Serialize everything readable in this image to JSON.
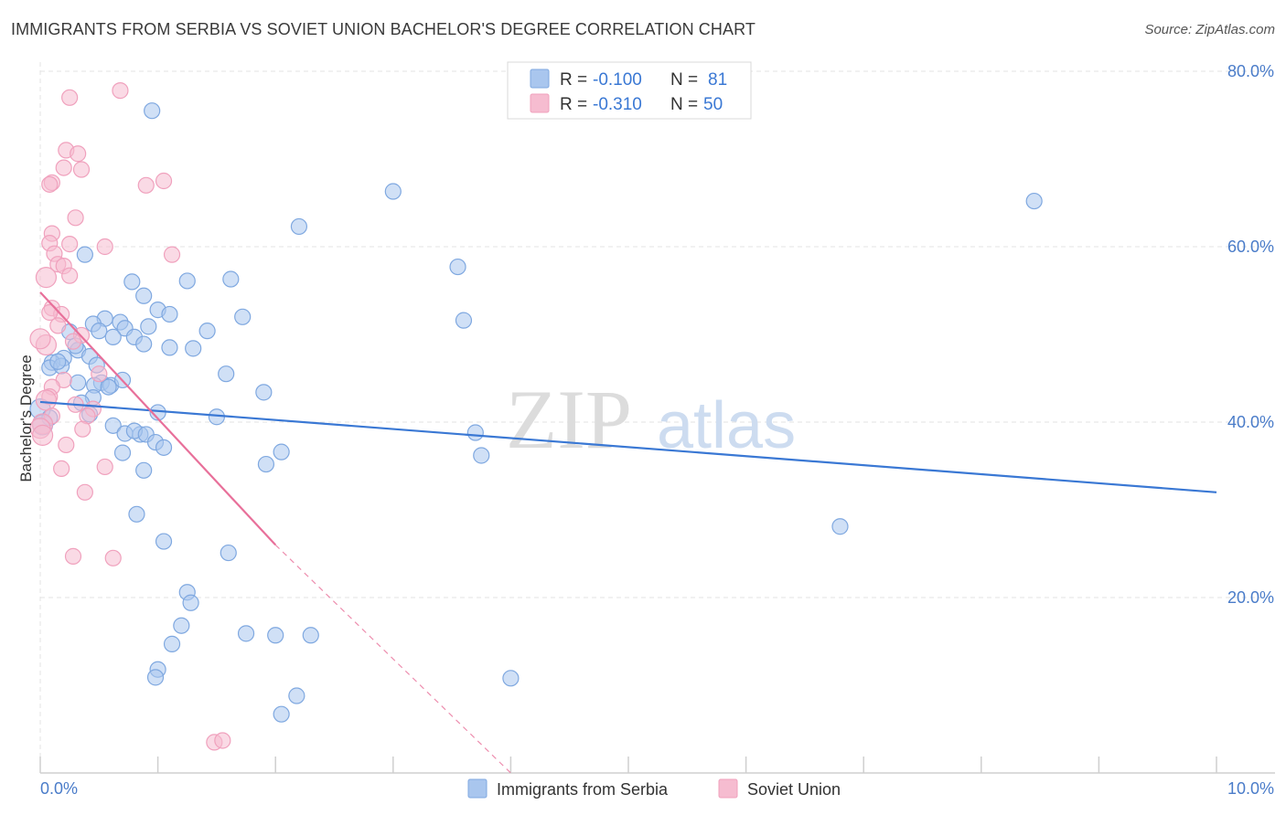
{
  "title": "IMMIGRANTS FROM SERBIA VS SOVIET UNION BACHELOR'S DEGREE CORRELATION CHART",
  "source": "Source: ZipAtlas.com",
  "watermark": {
    "zip": "ZIP",
    "atlas": "atlas"
  },
  "colors": {
    "blue": "#3a78d4",
    "blue_fill": "#a9c6ee",
    "blue_edge": "#7fa8e0",
    "pink": "#e8709a",
    "pink_fill": "#f6bcd0",
    "pink_edge": "#f0a1bd",
    "grid": "#e3e3e3",
    "axis_text": "#4a7cc9"
  },
  "legend": {
    "serbia": {
      "r_label": "R = ",
      "r_value": "-0.100",
      "n_label": "N = ",
      "n_value": "81"
    },
    "soviet": {
      "r_label": "R = ",
      "r_value": "-0.310",
      "n_label": "N = ",
      "n_value": "50"
    }
  },
  "chart_data": {
    "type": "scatter",
    "title": "IMMIGRANTS FROM SERBIA VS SOVIET UNION BACHELOR'S DEGREE CORRELATION CHART",
    "xlabel": "",
    "ylabel": "Bachelor's Degree",
    "xlim": [
      0,
      10
    ],
    "ylim": [
      0,
      80
    ],
    "x_tick_labels": [
      "0.0%",
      "10.0%"
    ],
    "y_ticks": [
      20,
      40,
      60,
      80
    ],
    "y_tick_labels": [
      "20.0%",
      "40.0%",
      "60.0%",
      "80.0%"
    ],
    "grid": true,
    "legend_position": "top-center",
    "series": [
      {
        "name": "Immigrants from Serbia",
        "color": "#3a78d4",
        "trend": {
          "x0": 0.0,
          "y0": 42.3,
          "x1": 10.0,
          "y1": 32.0
        },
        "points": [
          [
            0.95,
            75.5
          ],
          [
            3.0,
            66.3
          ],
          [
            8.45,
            65.2
          ],
          [
            2.2,
            62.3
          ],
          [
            0.38,
            59.1
          ],
          [
            3.55,
            57.7
          ],
          [
            1.25,
            56.1
          ],
          [
            0.78,
            56.0
          ],
          [
            0.88,
            54.4
          ],
          [
            1.0,
            52.8
          ],
          [
            1.1,
            52.3
          ],
          [
            0.55,
            51.8
          ],
          [
            0.68,
            51.4
          ],
          [
            0.45,
            51.2
          ],
          [
            0.72,
            50.7
          ],
          [
            0.92,
            50.9
          ],
          [
            0.5,
            50.4
          ],
          [
            1.42,
            50.4
          ],
          [
            0.25,
            50.3
          ],
          [
            3.6,
            51.6
          ],
          [
            0.62,
            49.7
          ],
          [
            0.8,
            49.7
          ],
          [
            0.88,
            48.9
          ],
          [
            1.1,
            48.5
          ],
          [
            0.32,
            48.2
          ],
          [
            0.42,
            47.5
          ],
          [
            0.2,
            47.3
          ],
          [
            0.1,
            46.8
          ],
          [
            0.08,
            46.2
          ],
          [
            0.18,
            46.4
          ],
          [
            0.48,
            46.5
          ],
          [
            0.52,
            44.5
          ],
          [
            0.46,
            44.2
          ],
          [
            0.32,
            44.5
          ],
          [
            0.6,
            44.2
          ],
          [
            0.7,
            44.8
          ],
          [
            0.45,
            42.8
          ],
          [
            0.35,
            42.2
          ],
          [
            1.0,
            41.1
          ],
          [
            1.58,
            45.5
          ],
          [
            1.9,
            43.4
          ],
          [
            1.5,
            40.6
          ],
          [
            0.0,
            41.5
          ],
          [
            0.08,
            40.5
          ],
          [
            0.02,
            39.7
          ],
          [
            0.62,
            39.6
          ],
          [
            0.72,
            38.7
          ],
          [
            0.85,
            38.6
          ],
          [
            0.8,
            39.0
          ],
          [
            0.9,
            38.6
          ],
          [
            3.7,
            38.8
          ],
          [
            0.98,
            37.7
          ],
          [
            1.05,
            37.1
          ],
          [
            0.7,
            36.5
          ],
          [
            2.05,
            36.6
          ],
          [
            1.92,
            35.2
          ],
          [
            3.75,
            36.2
          ],
          [
            0.88,
            34.5
          ],
          [
            0.82,
            29.5
          ],
          [
            1.05,
            26.4
          ],
          [
            1.6,
            25.1
          ],
          [
            6.8,
            28.1
          ],
          [
            1.25,
            20.6
          ],
          [
            1.28,
            19.4
          ],
          [
            1.2,
            16.8
          ],
          [
            1.75,
            15.9
          ],
          [
            2.0,
            15.7
          ],
          [
            2.3,
            15.7
          ],
          [
            1.12,
            14.7
          ],
          [
            1.0,
            11.8
          ],
          [
            0.98,
            10.9
          ],
          [
            4.0,
            10.8
          ],
          [
            2.18,
            8.8
          ],
          [
            2.05,
            6.7
          ],
          [
            1.72,
            52.0
          ],
          [
            1.62,
            56.3
          ],
          [
            1.3,
            48.4
          ],
          [
            0.3,
            48.7
          ],
          [
            0.58,
            44.0
          ],
          [
            0.42,
            40.9
          ],
          [
            0.15,
            46.9
          ]
        ]
      },
      {
        "name": "Soviet Union",
        "color": "#e8709a",
        "trend": {
          "x0": 0.0,
          "y0": 54.8,
          "x1": 2.0,
          "y1": 26.0,
          "dash_x1": 4.0,
          "dash_y1": 0.0
        },
        "points": [
          [
            0.25,
            77.0
          ],
          [
            0.68,
            77.8
          ],
          [
            0.22,
            71.0
          ],
          [
            0.32,
            70.6
          ],
          [
            0.2,
            69.0
          ],
          [
            0.35,
            68.8
          ],
          [
            0.1,
            67.3
          ],
          [
            0.08,
            67.1
          ],
          [
            0.9,
            67.0
          ],
          [
            1.05,
            67.5
          ],
          [
            0.3,
            63.3
          ],
          [
            0.1,
            61.5
          ],
          [
            0.08,
            60.4
          ],
          [
            0.25,
            60.3
          ],
          [
            0.55,
            60.0
          ],
          [
            0.12,
            59.2
          ],
          [
            1.12,
            59.1
          ],
          [
            0.15,
            58.0
          ],
          [
            0.2,
            57.8
          ],
          [
            0.25,
            56.7
          ],
          [
            0.05,
            56.5
          ],
          [
            0.1,
            53.0
          ],
          [
            0.18,
            52.3
          ],
          [
            0.08,
            52.5
          ],
          [
            0.15,
            51.0
          ],
          [
            0.35,
            49.9
          ],
          [
            0.05,
            48.8
          ],
          [
            0.28,
            49.2
          ],
          [
            0.5,
            45.5
          ],
          [
            0.2,
            44.8
          ],
          [
            0.1,
            44.0
          ],
          [
            0.08,
            42.9
          ],
          [
            0.05,
            42.5
          ],
          [
            0.3,
            42.0
          ],
          [
            0.45,
            41.5
          ],
          [
            0.1,
            40.7
          ],
          [
            0.4,
            40.7
          ],
          [
            0.02,
            39.8
          ],
          [
            0.36,
            39.2
          ],
          [
            0.0,
            39.3
          ],
          [
            0.02,
            38.5
          ],
          [
            0.22,
            37.4
          ],
          [
            0.18,
            34.7
          ],
          [
            0.55,
            34.9
          ],
          [
            0.38,
            32.0
          ],
          [
            0.28,
            24.7
          ],
          [
            0.62,
            24.5
          ],
          [
            1.48,
            3.5
          ],
          [
            1.55,
            3.7
          ],
          [
            0.0,
            49.5
          ]
        ]
      }
    ]
  },
  "bottom_legend": {
    "serbia": "Immigrants from Serbia",
    "soviet": "Soviet Union"
  }
}
